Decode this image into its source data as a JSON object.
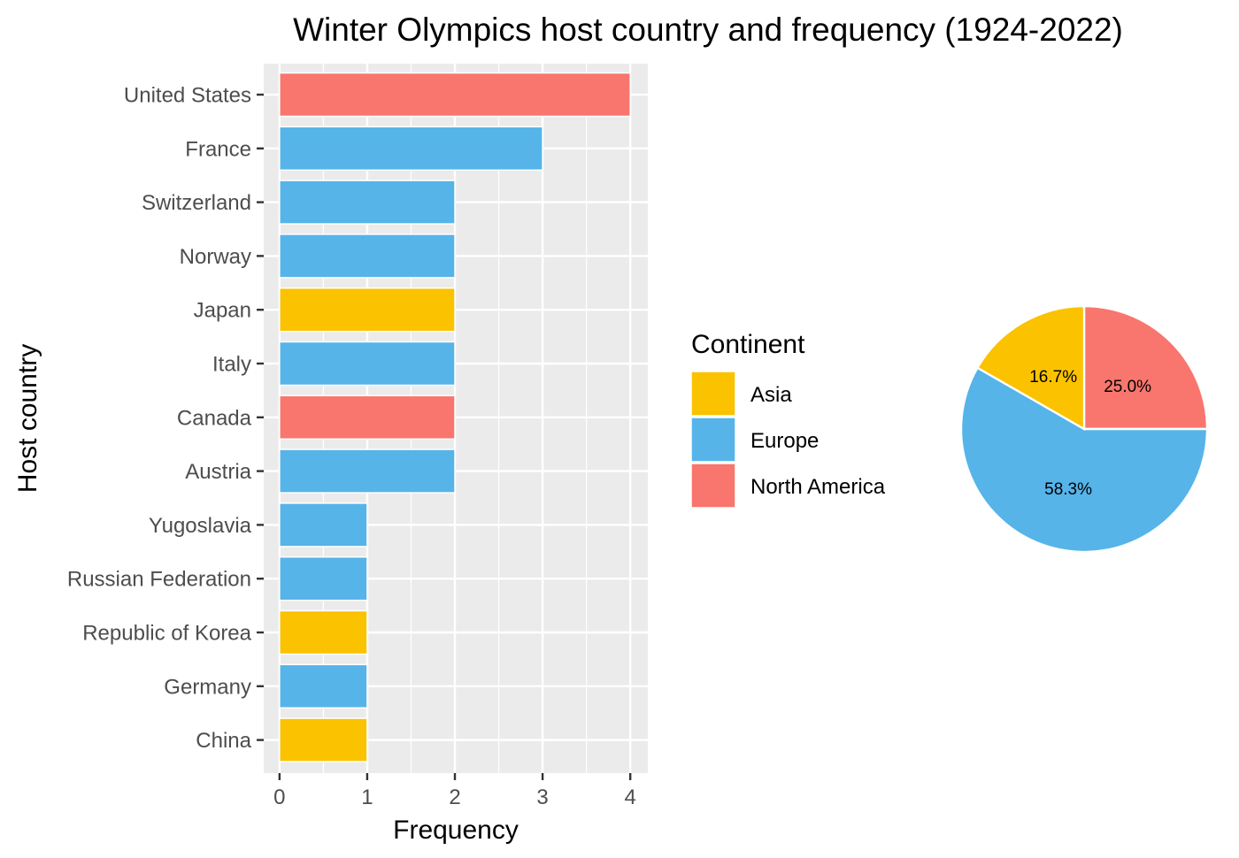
{
  "title": "Winter Olympics host country and frequency (1924-2022)",
  "colors": {
    "Asia": "#FBC200",
    "Europe": "#56B4E9",
    "North America": "#F8766D",
    "panel_bg": "#EBEBEB",
    "grid": "#FFFFFF",
    "tick": "#333333"
  },
  "chart_data": [
    {
      "type": "bar",
      "orientation": "horizontal",
      "title": "Winter Olympics host country and frequency (1924-2022)",
      "xlabel": "Frequency",
      "ylabel": "Host country",
      "xlim": [
        -0.18,
        4.2
      ],
      "xticks": [
        "0",
        "1",
        "2",
        "3",
        "4"
      ],
      "grid": true,
      "categories": [
        "United States",
        "France",
        "Switzerland",
        "Norway",
        "Japan",
        "Italy",
        "Canada",
        "Austria",
        "Yugoslavia",
        "Russian Federation",
        "Republic of Korea",
        "Germany",
        "China"
      ],
      "values": [
        4,
        3,
        2,
        2,
        2,
        2,
        2,
        2,
        1,
        1,
        1,
        1,
        1
      ],
      "continent": [
        "North America",
        "Europe",
        "Europe",
        "Europe",
        "Asia",
        "Europe",
        "North America",
        "Europe",
        "Europe",
        "Europe",
        "Asia",
        "Europe",
        "Asia"
      ]
    },
    {
      "type": "pie",
      "legend_title": "Continent",
      "legend_position": "left of pie",
      "legend": [
        "Asia",
        "Europe",
        "North America"
      ],
      "slices": [
        {
          "name": "North America",
          "value": 25.0,
          "label": "25.0%"
        },
        {
          "name": "Europe",
          "value": 58.3,
          "label": "58.3%"
        },
        {
          "name": "Asia",
          "value": 16.7,
          "label": "16.7%"
        }
      ]
    }
  ]
}
